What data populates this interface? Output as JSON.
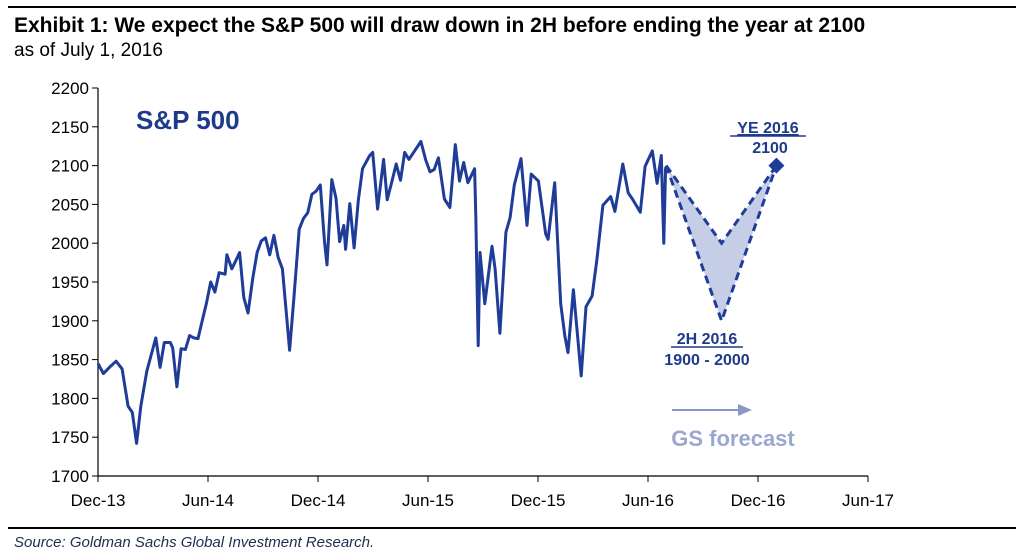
{
  "header": {
    "title": "Exhibit 1: We expect the S&P 500 will draw down in 2H before ending the year at 2100",
    "subtitle": "as of July 1, 2016"
  },
  "footer": {
    "source": "Source: Goldman Sachs Global Investment Research."
  },
  "chart_data": {
    "type": "line",
    "label": "S&P 500",
    "x_tick_labels": [
      "Dec-13",
      "Jun-14",
      "Dec-14",
      "Jun-15",
      "Dec-15",
      "Jun-16",
      "Dec-16",
      "Jun-17"
    ],
    "y_ticks": [
      1700,
      1750,
      1800,
      1850,
      1900,
      1950,
      2000,
      2050,
      2100,
      2150,
      2200
    ],
    "ylim": [
      1700,
      2200
    ],
    "xlim": [
      "2013-12-01",
      "2017-06-01"
    ],
    "grid": false,
    "series": [
      {
        "name": "S&P 500",
        "color": "#1f3c99",
        "points": [
          [
            "2013-12-01",
            1845
          ],
          [
            "2013-12-10",
            1832
          ],
          [
            "2013-12-20",
            1840
          ],
          [
            "2013-12-31",
            1848
          ],
          [
            "2014-01-10",
            1838
          ],
          [
            "2014-01-20",
            1790
          ],
          [
            "2014-01-27",
            1782
          ],
          [
            "2014-02-03",
            1742
          ],
          [
            "2014-02-10",
            1790
          ],
          [
            "2014-02-20",
            1835
          ],
          [
            "2014-02-28",
            1858
          ],
          [
            "2014-03-07",
            1878
          ],
          [
            "2014-03-14",
            1840
          ],
          [
            "2014-03-21",
            1872
          ],
          [
            "2014-03-31",
            1872
          ],
          [
            "2014-04-04",
            1865
          ],
          [
            "2014-04-11",
            1815
          ],
          [
            "2014-04-18",
            1864
          ],
          [
            "2014-04-25",
            1863
          ],
          [
            "2014-05-02",
            1881
          ],
          [
            "2014-05-09",
            1878
          ],
          [
            "2014-05-16",
            1877
          ],
          [
            "2014-05-23",
            1900
          ],
          [
            "2014-05-30",
            1923
          ],
          [
            "2014-06-06",
            1950
          ],
          [
            "2014-06-13",
            1937
          ],
          [
            "2014-06-20",
            1962
          ],
          [
            "2014-06-30",
            1960
          ],
          [
            "2014-07-03",
            1985
          ],
          [
            "2014-07-11",
            1967
          ],
          [
            "2014-07-18",
            1978
          ],
          [
            "2014-07-24",
            1988
          ],
          [
            "2014-07-31",
            1930
          ],
          [
            "2014-08-07",
            1910
          ],
          [
            "2014-08-15",
            1955
          ],
          [
            "2014-08-22",
            1988
          ],
          [
            "2014-08-29",
            2003
          ],
          [
            "2014-09-05",
            2007
          ],
          [
            "2014-09-12",
            1985
          ],
          [
            "2014-09-19",
            2010
          ],
          [
            "2014-09-26",
            1982
          ],
          [
            "2014-10-03",
            1967
          ],
          [
            "2014-10-10",
            1906
          ],
          [
            "2014-10-15",
            1862
          ],
          [
            "2014-10-22",
            1928
          ],
          [
            "2014-10-31",
            2018
          ],
          [
            "2014-11-07",
            2032
          ],
          [
            "2014-11-14",
            2039
          ],
          [
            "2014-11-21",
            2063
          ],
          [
            "2014-11-28",
            2067
          ],
          [
            "2014-12-05",
            2075
          ],
          [
            "2014-12-12",
            2002
          ],
          [
            "2014-12-16",
            1972
          ],
          [
            "2014-12-24",
            2082
          ],
          [
            "2014-12-31",
            2058
          ],
          [
            "2015-01-06",
            2002
          ],
          [
            "2015-01-13",
            2023
          ],
          [
            "2015-01-16",
            1992
          ],
          [
            "2015-01-23",
            2051
          ],
          [
            "2015-01-30",
            1994
          ],
          [
            "2015-02-06",
            2055
          ],
          [
            "2015-02-13",
            2096
          ],
          [
            "2015-02-25",
            2113
          ],
          [
            "2015-03-02",
            2117
          ],
          [
            "2015-03-10",
            2044
          ],
          [
            "2015-03-20",
            2108
          ],
          [
            "2015-03-26",
            2056
          ],
          [
            "2015-04-03",
            2080
          ],
          [
            "2015-04-10",
            2102
          ],
          [
            "2015-04-17",
            2081
          ],
          [
            "2015-04-24",
            2117
          ],
          [
            "2015-05-01",
            2108
          ],
          [
            "2015-05-08",
            2116
          ],
          [
            "2015-05-21",
            2131
          ],
          [
            "2015-05-29",
            2107
          ],
          [
            "2015-06-05",
            2092
          ],
          [
            "2015-06-12",
            2095
          ],
          [
            "2015-06-19",
            2110
          ],
          [
            "2015-06-29",
            2057
          ],
          [
            "2015-07-08",
            2046
          ],
          [
            "2015-07-17",
            2127
          ],
          [
            "2015-07-24",
            2080
          ],
          [
            "2015-07-31",
            2104
          ],
          [
            "2015-08-07",
            2078
          ],
          [
            "2015-08-18",
            2096
          ],
          [
            "2015-08-20",
            2035
          ],
          [
            "2015-08-24",
            1868
          ],
          [
            "2015-08-27",
            1988
          ],
          [
            "2015-09-04",
            1922
          ],
          [
            "2015-09-16",
            1996
          ],
          [
            "2015-09-21",
            1967
          ],
          [
            "2015-09-29",
            1884
          ],
          [
            "2015-10-09",
            2014
          ],
          [
            "2015-10-16",
            2033
          ],
          [
            "2015-10-23",
            2075
          ],
          [
            "2015-11-03",
            2109
          ],
          [
            "2015-11-13",
            2023
          ],
          [
            "2015-11-20",
            2089
          ],
          [
            "2015-12-02",
            2080
          ],
          [
            "2015-12-14",
            2012
          ],
          [
            "2015-12-18",
            2005
          ],
          [
            "2015-12-29",
            2078
          ],
          [
            "2016-01-08",
            1922
          ],
          [
            "2016-01-15",
            1880
          ],
          [
            "2016-01-20",
            1859
          ],
          [
            "2016-01-29",
            1940
          ],
          [
            "2016-02-05",
            1880
          ],
          [
            "2016-02-11",
            1829
          ],
          [
            "2016-02-19",
            1918
          ],
          [
            "2016-02-29",
            1932
          ],
          [
            "2016-03-08",
            1979
          ],
          [
            "2016-03-18",
            2049
          ],
          [
            "2016-03-31",
            2060
          ],
          [
            "2016-04-07",
            2041
          ],
          [
            "2016-04-20",
            2102
          ],
          [
            "2016-04-29",
            2065
          ],
          [
            "2016-05-06",
            2057
          ],
          [
            "2016-05-19",
            2040
          ],
          [
            "2016-05-27",
            2099
          ],
          [
            "2016-06-08",
            2119
          ],
          [
            "2016-06-16",
            2077
          ],
          [
            "2016-06-23",
            2113
          ],
          [
            "2016-06-27",
            2000
          ],
          [
            "2016-06-30",
            2098
          ]
        ]
      }
    ],
    "forecast": {
      "label": "GS forecast",
      "color": "#1f3c99",
      "fill": "#c6cde6",
      "start": [
        "2016-07-01",
        2100
      ],
      "trough_date": "2016-10-01",
      "trough_high": 2000,
      "trough_low": 1900,
      "end": [
        "2016-12-31",
        2100
      ]
    },
    "annotations": {
      "ye_label": "YE 2016",
      "ye_value": "2100",
      "h2_label": "2H 2016",
      "h2_range": "1900 - 2000"
    }
  }
}
